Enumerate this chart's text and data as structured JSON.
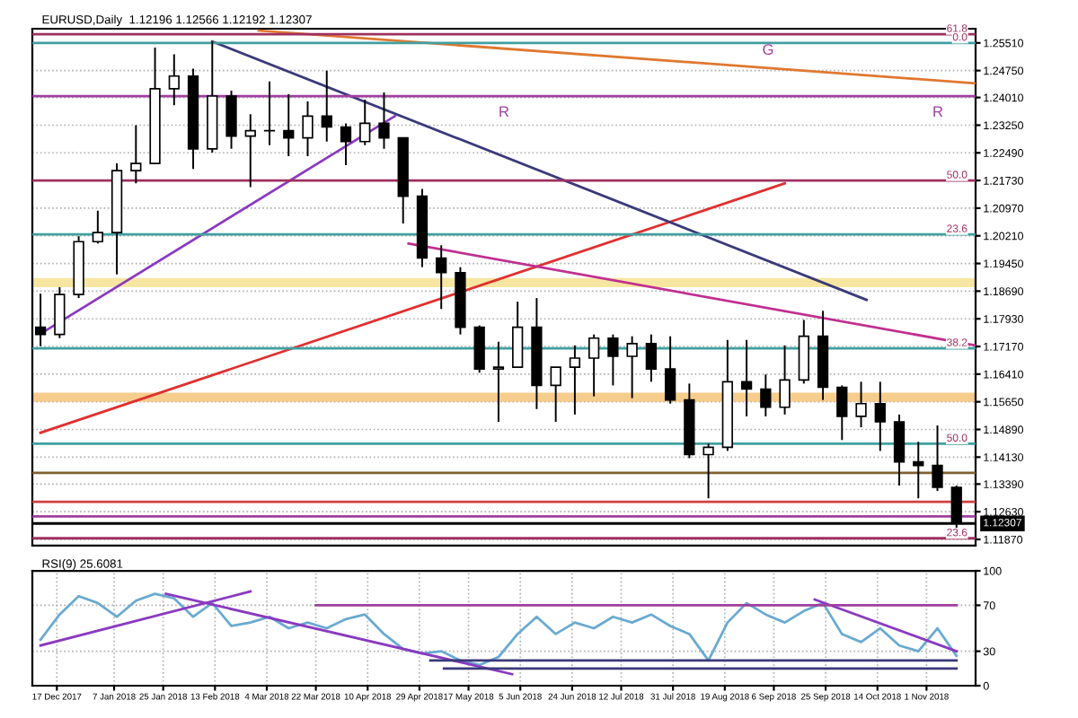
{
  "chart_data": [
    {
      "type": "candlestick",
      "title": "EURUSD,Daily  1.12196 1.12566 1.12192 1.12307",
      "color": "#000000",
      "x": [
        "2017-12-11",
        "2017-12-18",
        "2017-12-25",
        "2018-01-01",
        "2018-01-08",
        "2018-01-15",
        "2018-01-22",
        "2018-01-29",
        "2018-02-05",
        "2018-02-12",
        "2018-02-19",
        "2018-02-26",
        "2018-03-05",
        "2018-03-12",
        "2018-03-19",
        "2018-03-26",
        "2018-04-02",
        "2018-04-09",
        "2018-04-16",
        "2018-04-23",
        "2018-04-30",
        "2018-05-07",
        "2018-05-14",
        "2018-05-21",
        "2018-05-28",
        "2018-06-04",
        "2018-06-11",
        "2018-06-18",
        "2018-06-25",
        "2018-07-02",
        "2018-07-09",
        "2018-07-16",
        "2018-07-23",
        "2018-07-30",
        "2018-08-06",
        "2018-08-13",
        "2018-08-20",
        "2018-08-27",
        "2018-09-03",
        "2018-09-10",
        "2018-09-17",
        "2018-09-24",
        "2018-10-01",
        "2018-10-08",
        "2018-10-15",
        "2018-10-22",
        "2018-10-29",
        "2018-11-05",
        "2018-11-12"
      ],
      "ohlc": [
        [
          1.177,
          1.1862,
          1.1718,
          1.175
        ],
        [
          1.175,
          1.188,
          1.174,
          1.186
        ],
        [
          1.186,
          1.202,
          1.185,
          1.2005
        ],
        [
          1.2005,
          1.209,
          1.2,
          1.203
        ],
        [
          1.203,
          1.222,
          1.1915,
          1.22
        ],
        [
          1.22,
          1.2325,
          1.2165,
          1.222
        ],
        [
          1.222,
          1.2538,
          1.222,
          1.2425
        ],
        [
          1.2425,
          1.252,
          1.238,
          1.246
        ],
        [
          1.246,
          1.248,
          1.2205,
          1.226
        ],
        [
          1.226,
          1.2555,
          1.225,
          1.2405
        ],
        [
          1.2405,
          1.242,
          1.226,
          1.2295
        ],
        [
          1.2295,
          1.2355,
          1.2155,
          1.231
        ],
        [
          1.231,
          1.2445,
          1.227,
          1.231
        ],
        [
          1.231,
          1.241,
          1.224,
          1.229
        ],
        [
          1.229,
          1.239,
          1.224,
          1.235
        ],
        [
          1.235,
          1.2475,
          1.228,
          1.232
        ],
        [
          1.232,
          1.233,
          1.2215,
          1.228
        ],
        [
          1.228,
          1.2395,
          1.227,
          1.233
        ],
        [
          1.233,
          1.2415,
          1.226,
          1.229
        ],
        [
          1.229,
          1.229,
          1.2055,
          1.213
        ],
        [
          1.213,
          1.215,
          1.1935,
          1.196
        ],
        [
          1.196,
          1.1995,
          1.182,
          1.192
        ],
        [
          1.192,
          1.1935,
          1.175,
          1.177
        ],
        [
          1.177,
          1.1775,
          1.1645,
          1.1655
        ],
        [
          1.1655,
          1.173,
          1.151,
          1.166
        ],
        [
          1.166,
          1.184,
          1.166,
          1.177
        ],
        [
          1.177,
          1.185,
          1.1545,
          1.161
        ],
        [
          1.161,
          1.166,
          1.151,
          1.166
        ],
        [
          1.166,
          1.172,
          1.153,
          1.1685
        ],
        [
          1.1685,
          1.175,
          1.158,
          1.174
        ],
        [
          1.174,
          1.175,
          1.161,
          1.169
        ],
        [
          1.169,
          1.1745,
          1.1575,
          1.1725
        ],
        [
          1.1725,
          1.175,
          1.162,
          1.1655
        ],
        [
          1.1655,
          1.1745,
          1.156,
          1.157
        ],
        [
          1.157,
          1.1615,
          1.141,
          1.142
        ],
        [
          1.142,
          1.145,
          1.13,
          1.144
        ],
        [
          1.144,
          1.1735,
          1.143,
          1.162
        ],
        [
          1.162,
          1.1735,
          1.1525,
          1.16
        ],
        [
          1.16,
          1.164,
          1.1525,
          1.155
        ],
        [
          1.155,
          1.172,
          1.153,
          1.1625
        ],
        [
          1.1625,
          1.179,
          1.1615,
          1.1745
        ],
        [
          1.1745,
          1.1815,
          1.157,
          1.1605
        ],
        [
          1.1605,
          1.161,
          1.146,
          1.1525
        ],
        [
          1.1525,
          1.162,
          1.1495,
          1.156
        ],
        [
          1.156,
          1.162,
          1.143,
          1.151
        ],
        [
          1.151,
          1.153,
          1.1335,
          1.14
        ],
        [
          1.14,
          1.1455,
          1.13,
          1.139
        ],
        [
          1.139,
          1.15,
          1.132,
          1.133
        ],
        [
          1.133,
          1.1335,
          1.1216,
          1.1231
        ]
      ],
      "series": [
        {
          "type": "line",
          "color": "#e03030",
          "x": [
            "2017-12-11",
            "2018-09-10"
          ],
          "values": [
            1.148,
            1.2165
          ]
        },
        {
          "type": "line",
          "color": "#e07830",
          "x": [
            "2018-03-01",
            "2018-11-19"
          ],
          "values": [
            1.2585,
            1.244
          ]
        },
        {
          "type": "line",
          "color": "#3a3a7a",
          "x": [
            "2018-02-12",
            "2018-10-10"
          ],
          "values": [
            1.2555,
            1.1845
          ]
        },
        {
          "type": "line",
          "color": "#8a3ac0",
          "x": [
            "2017-12-11",
            "2018-04-20"
          ],
          "values": [
            1.1752,
            1.235
          ]
        },
        {
          "type": "line",
          "color": "#c03090",
          "x": [
            "2018-04-25",
            "2018-11-19"
          ],
          "values": [
            1.2,
            1.172
          ]
        },
        {
          "type": "line",
          "color": "#a03060",
          "x": [
            "2017-12-08",
            "2018-11-19"
          ],
          "values": [
            1.2575,
            1.2575
          ]
        },
        {
          "type": "line",
          "color": "#40a0a0",
          "x": [
            "2017-12-08",
            "2018-11-19"
          ],
          "values": [
            1.2551,
            1.2551
          ]
        },
        {
          "type": "line",
          "color": "#a040a0",
          "x": [
            "2017-12-08",
            "2018-11-19"
          ],
          "values": [
            1.2405,
            1.2405
          ]
        },
        {
          "type": "line",
          "color": "#a03060",
          "x": [
            "2017-12-08",
            "2018-11-19"
          ],
          "values": [
            1.2173,
            1.2173
          ]
        },
        {
          "type": "line",
          "color": "#40a0a0",
          "x": [
            "2017-12-08",
            "2018-11-19"
          ],
          "values": [
            1.2025,
            1.2025
          ]
        },
        {
          "type": "line",
          "color": "#40a0a0",
          "x": [
            "2017-12-08",
            "2018-11-19"
          ],
          "values": [
            1.1712,
            1.1712
          ]
        },
        {
          "type": "line",
          "color": "#40a0a0",
          "x": [
            "2017-12-08",
            "2018-11-19"
          ],
          "values": [
            1.145,
            1.145
          ]
        },
        {
          "type": "line",
          "color": "#806030",
          "x": [
            "2017-12-08",
            "2018-11-19"
          ],
          "values": [
            1.137,
            1.137
          ]
        },
        {
          "type": "line",
          "color": "#d04040",
          "x": [
            "2017-12-08",
            "2018-11-19"
          ],
          "values": [
            1.129,
            1.129
          ]
        },
        {
          "type": "line",
          "color": "#a040a0",
          "x": [
            "2017-12-08",
            "2018-11-19"
          ],
          "values": [
            1.125,
            1.125
          ]
        },
        {
          "type": "line",
          "color": "#a03060",
          "x": [
            "2017-12-08",
            "2018-11-19"
          ],
          "values": [
            1.119,
            1.119
          ]
        }
      ],
      "ref_lines": [
        {
          "axis": "y",
          "value": 1.12307,
          "label": "1.12307",
          "color": "#000000"
        }
      ],
      "bands": [
        {
          "axis": "y",
          "from": 1.188,
          "to": 1.1905,
          "color": "#f5e08a"
        },
        {
          "axis": "y",
          "from": 1.1565,
          "to": 1.159,
          "color": "#f5c070"
        }
      ],
      "annotations": [
        "G",
        "R",
        "R",
        {
          "text": "61.8",
          "x": "2018-11-16",
          "y": 1.2575
        },
        {
          "text": "0.0",
          "x": "2018-11-16",
          "y": 1.2551
        },
        {
          "text": "50.0",
          "x": "2018-11-16",
          "y": 1.2173
        },
        {
          "text": "23.6",
          "x": "2018-11-16",
          "y": 1.2025
        },
        {
          "text": "38.2",
          "x": "2018-11-16",
          "y": 1.1712
        },
        {
          "text": "50.0",
          "x": "2018-11-16",
          "y": 1.145
        },
        {
          "text": "23.6",
          "x": "2018-11-16",
          "y": 1.119
        }
      ],
      "ylim": [
        1.117,
        1.259
      ],
      "yticks": [
        {
          "value": 1.2551,
          "label": "1.25510"
        },
        {
          "value": 1.2475,
          "label": "1.24750"
        },
        {
          "value": 1.2401,
          "label": "1.24010"
        },
        {
          "value": 1.2325,
          "label": "1.23250"
        },
        {
          "value": 1.2249,
          "label": "1.22490"
        },
        {
          "value": 1.2173,
          "label": "1.21730"
        },
        {
          "value": 1.2097,
          "label": "1.20970"
        },
        {
          "value": 1.2021,
          "label": "1.20210"
        },
        {
          "value": 1.1945,
          "label": "1.19450"
        },
        {
          "value": 1.1869,
          "label": "1.18690"
        },
        {
          "value": 1.1793,
          "label": "1.17930"
        },
        {
          "value": 1.1717,
          "label": "1.17170"
        },
        {
          "value": 1.1641,
          "label": "1.16410"
        },
        {
          "value": 1.1565,
          "label": "1.15650"
        },
        {
          "value": 1.1489,
          "label": "1.14890"
        },
        {
          "value": 1.1413,
          "label": "1.14130"
        },
        {
          "value": 1.1339,
          "label": "1.13390"
        },
        {
          "value": 1.1263,
          "label": "1.12630"
        },
        {
          "value": 1.1187,
          "label": "1.11870"
        }
      ],
      "xlim": [
        "2017-12-08",
        "2018-11-19"
      ],
      "grid": true,
      "tick_labels": "y"
    },
    {
      "type": "line",
      "title": "RSI(9) 25.6081",
      "color": "#6aaad0",
      "x": [
        "2017-12-11",
        "2017-12-18",
        "2017-12-25",
        "2018-01-01",
        "2018-01-08",
        "2018-01-15",
        "2018-01-22",
        "2018-01-29",
        "2018-02-05",
        "2018-02-12",
        "2018-02-19",
        "2018-02-26",
        "2018-03-05",
        "2018-03-12",
        "2018-03-19",
        "2018-03-26",
        "2018-04-02",
        "2018-04-09",
        "2018-04-16",
        "2018-04-23",
        "2018-04-30",
        "2018-05-07",
        "2018-05-14",
        "2018-05-21",
        "2018-05-28",
        "2018-06-04",
        "2018-06-11",
        "2018-06-18",
        "2018-06-25",
        "2018-07-02",
        "2018-07-09",
        "2018-07-16",
        "2018-07-23",
        "2018-07-30",
        "2018-08-06",
        "2018-08-13",
        "2018-08-20",
        "2018-08-27",
        "2018-09-03",
        "2018-09-10",
        "2018-09-17",
        "2018-09-24",
        "2018-10-01",
        "2018-10-08",
        "2018-10-15",
        "2018-10-22",
        "2018-10-29",
        "2018-11-05",
        "2018-11-12"
      ],
      "values": [
        40,
        62,
        78,
        72,
        60,
        74,
        80,
        76,
        60,
        72,
        52,
        55,
        60,
        50,
        55,
        50,
        58,
        62,
        45,
        32,
        28,
        30,
        22,
        18,
        25,
        45,
        60,
        45,
        55,
        50,
        60,
        55,
        62,
        52,
        45,
        22,
        55,
        72,
        62,
        55,
        65,
        72,
        45,
        38,
        50,
        35,
        30,
        50,
        26
      ],
      "series": [
        {
          "type": "line",
          "color": "#8a3ac0",
          "x": [
            "2017-12-11",
            "2018-02-26"
          ],
          "values": [
            35,
            82
          ]
        },
        {
          "type": "line",
          "color": "#8a3ac0",
          "x": [
            "2018-01-26",
            "2018-06-02"
          ],
          "values": [
            80,
            10
          ]
        },
        {
          "type": "line",
          "color": "#8a3ac0",
          "x": [
            "2018-09-21",
            "2018-11-12"
          ],
          "values": [
            75,
            30
          ]
        },
        {
          "type": "line",
          "color": "#a040a0",
          "x": [
            "2018-03-22",
            "2018-11-12"
          ],
          "values": [
            70,
            70
          ]
        },
        {
          "type": "line",
          "color": "#3a3a7a",
          "x": [
            "2018-05-03",
            "2018-11-12"
          ],
          "values": [
            22,
            22
          ]
        },
        {
          "type": "line",
          "color": "#3a3a7a",
          "x": [
            "2018-05-08",
            "2018-11-12"
          ],
          "values": [
            15,
            15
          ]
        }
      ],
      "ylim": [
        0,
        100
      ],
      "yticks": [
        0,
        30,
        70,
        100
      ],
      "xlim": [
        "2017-12-08",
        "2018-11-19"
      ],
      "xticks": [
        {
          "value": "2017-12-17",
          "label": "17 Dec 2017"
        },
        {
          "value": "2018-01-07",
          "label": "7 Jan 2018"
        },
        {
          "value": "2018-01-25",
          "label": "25 Jan 2018"
        },
        {
          "value": "2018-02-13",
          "label": "13 Feb 2018"
        },
        {
          "value": "2018-03-04",
          "label": "4 Mar 2018"
        },
        {
          "value": "2018-03-22",
          "label": "22 Mar 2018"
        },
        {
          "value": "2018-04-10",
          "label": "10 Apr 2018"
        },
        {
          "value": "2018-04-29",
          "label": "29 Apr 2018"
        },
        {
          "value": "2018-05-17",
          "label": "17 May 2018"
        },
        {
          "value": "2018-06-05",
          "label": "5 Jun 2018"
        },
        {
          "value": "2018-06-24",
          "label": "24 Jun 2018"
        },
        {
          "value": "2018-07-12",
          "label": "12 Jul 2018"
        },
        {
          "value": "2018-07-31",
          "label": "31 Jul 2018"
        },
        {
          "value": "2018-08-19",
          "label": "19 Aug 2018"
        },
        {
          "value": "2018-09-06",
          "label": "6 Sep 2018"
        },
        {
          "value": "2018-09-25",
          "label": "25 Sep 2018"
        },
        {
          "value": "2018-10-14",
          "label": "14 Oct 2018"
        },
        {
          "value": "2018-11-01",
          "label": "1 Nov 2018"
        }
      ],
      "grid": true
    }
  ]
}
